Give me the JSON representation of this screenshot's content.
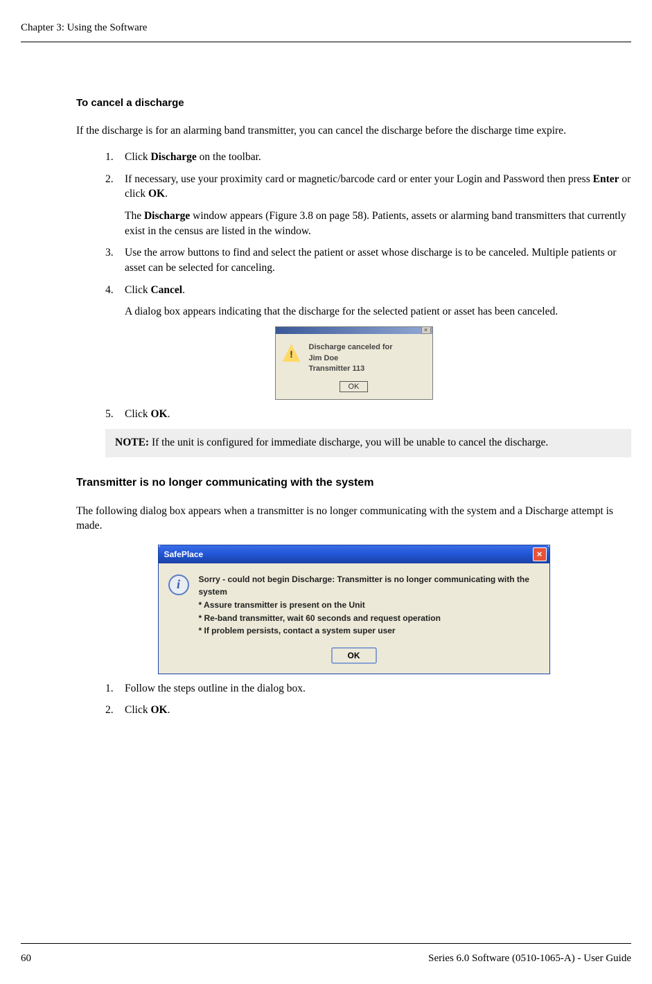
{
  "header": {
    "chapter": "Chapter 3: Using the Software"
  },
  "section1": {
    "heading": "To cancel a discharge",
    "intro": "If the discharge is for an alarming band transmitter, you can cancel the discharge before the discharge time expire.",
    "steps": [
      {
        "num": "1.",
        "text_a": "Click ",
        "bold_a": "Discharge",
        "text_b": " on the toolbar."
      },
      {
        "num": "2.",
        "text_a": "If necessary, use your proximity card or magnetic/barcode card or enter your Login and Password then press ",
        "bold_a": "Enter",
        "text_b": " or click ",
        "bold_b": "OK",
        "text_c": ".",
        "sub_a1": "The ",
        "sub_bold": "Discharge",
        "sub_a2": " window appears (Figure 3.8 on page 58). Patients, assets or alarming band transmitters that currently exist in the census are listed in the window."
      },
      {
        "num": "3.",
        "text_a": "Use the arrow buttons to find and select the patient or asset whose discharge is to be canceled. Multiple patients or asset can be selected for canceling."
      },
      {
        "num": "4.",
        "text_a": "Click ",
        "bold_a": "Cancel",
        "text_b": ".",
        "sub_a1": "A dialog box appears indicating that the discharge for the selected patient or asset has been canceled."
      },
      {
        "num": "5.",
        "text_a": "Click ",
        "bold_a": "OK",
        "text_b": "."
      }
    ]
  },
  "dialog1": {
    "close_glyph": "×",
    "line1": "Discharge canceled for",
    "line2": "Jim Doe",
    "line3": "Transmitter 113",
    "ok": "OK"
  },
  "note": {
    "label": "NOTE:",
    "text": " If the unit is configured for immediate discharge, you will be unable to cancel the discharge."
  },
  "section2": {
    "heading": "Transmitter is no longer communicating with the system",
    "intro": "The following dialog box appears when a transmitter is no longer communicating with the system and a Discharge attempt is made.",
    "steps": [
      {
        "num": "1.",
        "text_a": "Follow the steps outline in the dialog box."
      },
      {
        "num": "2.",
        "text_a": "Click ",
        "bold_a": "OK",
        "text_b": "."
      }
    ]
  },
  "dialog2": {
    "title": "SafePlace",
    "close_glyph": "×",
    "line1": "Sorry - could not begin Discharge: Transmitter is no longer communicating with the system",
    "line2": "* Assure transmitter is present on the Unit",
    "line3": "* Re-band transmitter, wait 60 seconds and request operation",
    "line4": "* If problem persists, contact a system super user",
    "ok": "OK"
  },
  "footer": {
    "page": "60",
    "text": "Series 6.0 Software (0510-1065-A) - User Guide"
  }
}
